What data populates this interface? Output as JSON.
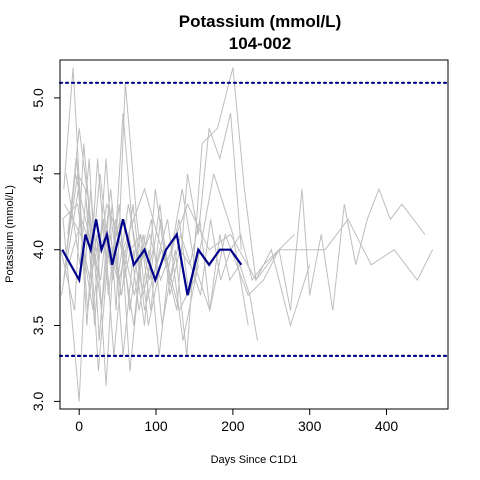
{
  "chart_data": {
    "type": "line",
    "title": "Potassium (mmol/L)",
    "subtitle": "104-002",
    "xlabel": "Days Since C1D1",
    "ylabel": "Potassium (mmol/L)",
    "xlim": [
      -25,
      480
    ],
    "ylim": [
      2.95,
      5.25
    ],
    "x_ticks": [
      0,
      100,
      200,
      300,
      400
    ],
    "x_tick_labels": [
      "0",
      "100",
      "200",
      "300",
      "400"
    ],
    "y_ticks": [
      3.0,
      3.5,
      4.0,
      4.5,
      5.0
    ],
    "y_tick_labels": [
      "3.0",
      "3.5",
      "4.0",
      "4.5",
      "5.0"
    ],
    "reference_lines": [
      {
        "y": 5.1,
        "color": "#00008B",
        "style": "dotted"
      },
      {
        "y": 3.3,
        "color": "#00008B",
        "style": "dotted"
      }
    ],
    "highlight_series": {
      "color": "#00008B",
      "x": [
        -22,
        0,
        8,
        15,
        22,
        29,
        36,
        43,
        57,
        71,
        85,
        99,
        113,
        127,
        141,
        155,
        169,
        183,
        197,
        211
      ],
      "y": [
        4.0,
        3.8,
        4.1,
        4.0,
        4.2,
        4.0,
        4.1,
        3.9,
        4.2,
        3.9,
        4.0,
        3.8,
        4.0,
        4.1,
        3.7,
        4.0,
        3.9,
        4.0,
        4.0,
        3.9
      ]
    },
    "background_series_color": "#BEBEBE",
    "background_series": [
      {
        "x": [
          -20,
          -5,
          8,
          22,
          36,
          57,
          85,
          113,
          141,
          169,
          197,
          230,
          260,
          290,
          320,
          350,
          380,
          410,
          440,
          460
        ],
        "y": [
          3.8,
          4.5,
          4.2,
          3.9,
          4.3,
          4.0,
          4.4,
          3.9,
          4.3,
          4.0,
          4.1,
          3.8,
          4.0,
          4.0,
          4.0,
          4.2,
          3.9,
          4.0,
          3.8,
          4.0
        ]
      },
      {
        "x": [
          -22,
          -2,
          8,
          15,
          22,
          36,
          50,
          64,
          78,
          92,
          106,
          120,
          134,
          150,
          170,
          190,
          205,
          220,
          240,
          260,
          275,
          290,
          300,
          315,
          330,
          345,
          360,
          375,
          390,
          405,
          420,
          450
        ],
        "y": [
          4.2,
          4.3,
          3.9,
          4.4,
          4.0,
          4.1,
          3.8,
          4.3,
          3.9,
          4.1,
          3.8,
          4.0,
          4.4,
          3.9,
          3.6,
          4.1,
          3.9,
          3.7,
          3.8,
          4.0,
          3.6,
          4.4,
          3.7,
          4.1,
          3.6,
          4.3,
          3.9,
          4.2,
          4.4,
          4.2,
          4.3,
          4.1
        ]
      },
      {
        "x": [
          -18,
          0,
          15,
          29,
          43,
          57,
          71,
          85,
          99,
          113,
          127,
          141,
          155,
          169,
          183,
          197,
          211
        ],
        "y": [
          3.9,
          4.8,
          4.2,
          3.6,
          4.3,
          3.3,
          4.0,
          3.5,
          4.4,
          3.9,
          3.6,
          4.5,
          4.1,
          4.8,
          4.6,
          4.9,
          4.0
        ]
      },
      {
        "x": [
          -15,
          -3,
          10,
          24,
          38,
          52,
          66,
          80,
          94,
          108,
          125,
          140,
          160,
          180,
          200,
          215,
          230,
          250,
          275,
          300
        ],
        "y": [
          4.1,
          4.6,
          3.5,
          4.6,
          3.7,
          4.3,
          3.2,
          3.9,
          4.2,
          3.5,
          4.0,
          3.3,
          4.7,
          4.8,
          5.2,
          4.4,
          3.8,
          4.0,
          3.5,
          3.9
        ]
      },
      {
        "x": [
          -20,
          -8,
          5,
          18,
          31,
          44,
          57,
          70,
          83,
          96
        ],
        "y": [
          4.4,
          5.2,
          4.0,
          3.6,
          4.2,
          3.8,
          4.9,
          4.1,
          3.7,
          4.0
        ]
      },
      {
        "x": [
          -16,
          -2,
          8,
          20,
          35,
          48,
          60,
          75,
          90,
          110,
          130,
          150,
          175,
          200,
          220
        ],
        "y": [
          4.0,
          4.5,
          4.4,
          3.5,
          4.6,
          3.6,
          5.1,
          4.2,
          3.5,
          4.0,
          3.6,
          3.8,
          4.5,
          4.1,
          3.5
        ]
      },
      {
        "x": [
          -21,
          0,
          12,
          25,
          40,
          55,
          70,
          85,
          100,
          115,
          135,
          155
        ],
        "y": [
          4.2,
          3.0,
          4.3,
          3.2,
          4.1,
          3.7,
          4.3,
          3.6,
          3.9,
          4.2,
          3.4,
          3.9
        ]
      },
      {
        "x": [
          -19,
          2,
          14,
          27,
          40,
          53,
          66,
          79,
          92,
          105,
          118,
          131,
          144,
          157,
          170,
          183,
          196,
          209,
          222,
          232
        ],
        "y": [
          4.3,
          4.1,
          3.8,
          4.5,
          3.9,
          4.2,
          3.6,
          4.1,
          3.8,
          4.3,
          3.7,
          4.0,
          3.9,
          4.2,
          3.6,
          4.1,
          3.8,
          3.9,
          3.7,
          3.4
        ]
      },
      {
        "x": [
          -23,
          -1,
          11,
          23,
          35,
          47,
          59,
          71,
          83,
          95,
          107
        ],
        "y": [
          3.7,
          4.4,
          3.6,
          4.1,
          3.1,
          4.2,
          3.9,
          3.5,
          4.1,
          3.8,
          4.0
        ]
      },
      {
        "x": [
          -17,
          1,
          13,
          26,
          39,
          52,
          65,
          78,
          91,
          104,
          117,
          130,
          143,
          156
        ],
        "y": [
          4.5,
          3.9,
          4.6,
          3.4,
          4.3,
          3.8,
          4.1,
          3.6,
          4.0,
          3.3,
          3.9,
          4.2,
          3.7,
          4.0
        ]
      },
      {
        "x": [
          -14,
          3,
          16,
          28,
          41,
          54,
          67,
          80,
          93,
          106,
          119,
          132,
          145,
          158,
          171,
          184,
          197,
          210,
          225,
          240,
          260,
          280
        ],
        "y": [
          3.9,
          4.2,
          4.0,
          3.8,
          4.4,
          3.7,
          4.0,
          4.1,
          3.6,
          4.2,
          3.8,
          4.1,
          3.9,
          3.7,
          4.2,
          3.8,
          4.0,
          4.1,
          3.8,
          3.9,
          4.0,
          4.1
        ]
      },
      {
        "x": [
          -24,
          -6,
          6,
          19,
          32,
          45,
          58,
          72,
          86
        ],
        "y": [
          4.0,
          3.6,
          4.7,
          3.9,
          4.2,
          3.3,
          4.0,
          3.7,
          4.1
        ]
      }
    ]
  }
}
